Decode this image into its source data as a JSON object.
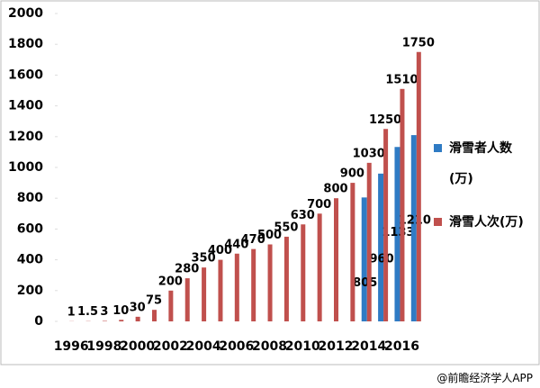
{
  "chart_data": {
    "type": "bar",
    "categories": [
      "1996",
      null,
      "1998",
      null,
      "2000",
      null,
      "2002",
      null,
      "2004",
      null,
      "2006",
      null,
      "2008",
      null,
      "2010",
      null,
      "2012",
      null,
      "2014",
      null,
      "2016",
      null
    ],
    "series": [
      {
        "name": "滑雪者人数(万)",
        "color": "#2f7bc4",
        "values": [
          null,
          null,
          null,
          null,
          null,
          null,
          null,
          null,
          null,
          null,
          null,
          null,
          null,
          null,
          null,
          null,
          null,
          null,
          805,
          960,
          1133,
          1210
        ]
      },
      {
        "name": "滑雪人次(万)",
        "color": "#c0504d",
        "values": [
          1,
          1.5,
          3,
          10,
          30,
          75,
          200,
          280,
          350,
          400,
          440,
          470,
          500,
          550,
          630,
          700,
          800,
          900,
          1030,
          1250,
          1510,
          1750
        ]
      }
    ],
    "ylim": [
      0,
      2000
    ],
    "yticks": [
      0,
      200,
      400,
      600,
      800,
      1000,
      1200,
      1400,
      1600,
      1800,
      2000
    ],
    "footer": "@前瞻经济学人APP"
  }
}
